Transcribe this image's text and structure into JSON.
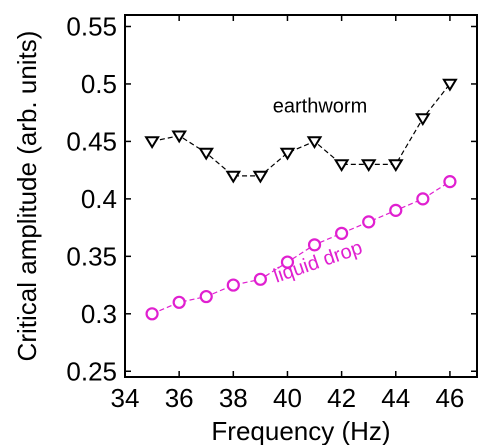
{
  "chart_data": {
    "type": "line",
    "xlabel": "Frequency (Hz)",
    "ylabel": "Critical amplitude (arb. units)",
    "xlim": [
      34,
      47
    ],
    "ylim": [
      0.245,
      0.56
    ],
    "x_ticks": [
      34,
      36,
      38,
      40,
      42,
      44,
      46
    ],
    "x_tick_labels": [
      "34",
      "36",
      "38",
      "40",
      "42",
      "44",
      "46"
    ],
    "y_ticks": [
      0.25,
      0.3,
      0.35,
      0.4,
      0.45,
      0.5,
      0.55
    ],
    "y_tick_labels": [
      "0.25",
      "0.3",
      "0.35",
      "0.4",
      "0.45",
      "0.5",
      "0.55"
    ],
    "grid": false,
    "legend": "none",
    "series": [
      {
        "name": "earthworm",
        "color": "#000000",
        "marker": "triangle-down",
        "line": "dashed",
        "x": [
          35,
          36,
          37,
          38,
          39,
          40,
          41,
          42,
          43,
          44,
          45,
          46
        ],
        "values": [
          0.45,
          0.455,
          0.44,
          0.42,
          0.42,
          0.44,
          0.45,
          0.43,
          0.43,
          0.43,
          0.47,
          0.5
        ]
      },
      {
        "name": "liquid drop",
        "color": "#e020d0",
        "marker": "circle",
        "line": "dashed",
        "x": [
          35,
          36,
          37,
          38,
          39,
          40,
          41,
          42,
          43,
          44,
          45,
          46
        ],
        "values": [
          0.3,
          0.31,
          0.315,
          0.325,
          0.33,
          0.345,
          0.36,
          0.37,
          0.38,
          0.39,
          0.4,
          0.415
        ]
      }
    ],
    "annotations": [
      {
        "text": "earthworm",
        "color": "#000000",
        "x": 41.2,
        "y": 0.475
      },
      {
        "text": "liquid drop",
        "color": "#e020d0",
        "x": 41.2,
        "y": 0.34,
        "rotation_deg": -19
      }
    ]
  }
}
